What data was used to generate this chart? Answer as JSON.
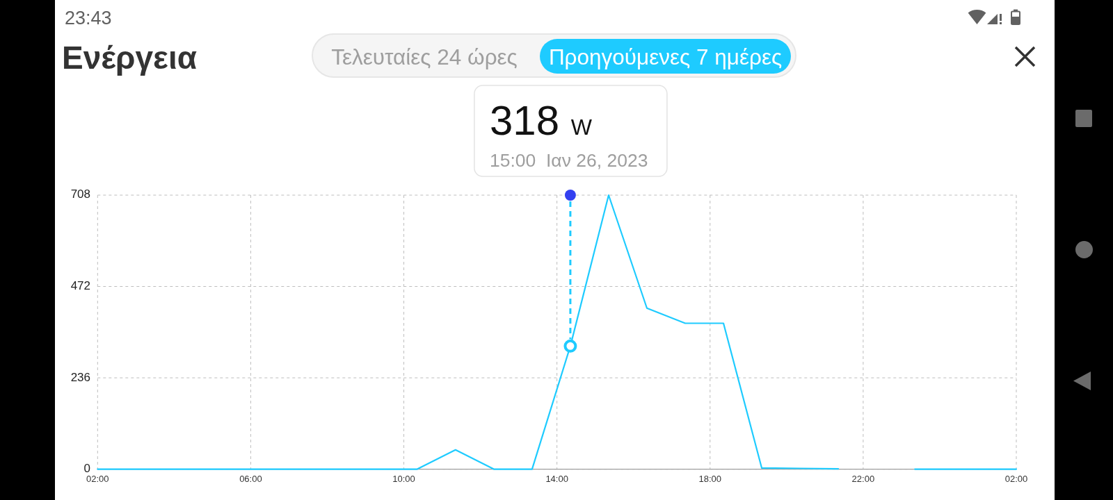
{
  "chart_data": {
    "type": "line",
    "title": "Ενέργεια",
    "x": [
      "2023-01-26T02:00",
      "2023-01-26T10:21",
      "2023-01-26T11:21",
      "2023-01-26T12:21",
      "2023-01-26T13:21",
      "2023-01-26T14:21",
      "2023-01-26T15:21",
      "2023-01-26T16:21",
      "2023-01-26T17:21",
      "2023-01-26T18:21",
      "2023-01-26T19:21",
      "2023-01-26T20:21",
      "2023-01-26T21:21",
      "2023-01-26T22:21",
      "2023-01-26T23:21",
      "2023-01-27T02:00"
    ],
    "values": [
      0,
      0,
      50,
      0,
      0,
      318,
      708,
      416,
      377,
      377,
      3,
      2,
      1,
      null,
      0,
      0
    ],
    "color": "#1ecbff",
    "xlim": [
      "2023-01-26T02:00",
      "2023-01-27T02:00"
    ],
    "xticks": [
      {
        "value": "2023-01-26T02:00",
        "label": "02:00"
      },
      {
        "value": "2023-01-26T06:00",
        "label": "06:00"
      },
      {
        "value": "2023-01-26T10:00",
        "label": "10:00"
      },
      {
        "value": "2023-01-26T14:00",
        "label": "14:00"
      },
      {
        "value": "2023-01-26T18:00",
        "label": "18:00"
      },
      {
        "value": "2023-01-26T22:00",
        "label": "22:00"
      },
      {
        "value": "2023-01-27T02:00",
        "label": "02:00"
      }
    ],
    "ylim": [
      0,
      708
    ],
    "yticks": [
      0,
      236,
      472,
      708
    ],
    "grid": true,
    "ref_lines": [
      {
        "axis": "x",
        "value": "2023-01-26T14:21",
        "color": "#1ecbff",
        "line_style": "dashed"
      }
    ],
    "annotations": [
      "23:43",
      "Τελευταίες 24 ώρες",
      "Προηγούμενες 7 ημέρες",
      "318 W",
      "15:00  Ιαν 26, 2023"
    ]
  }
}
